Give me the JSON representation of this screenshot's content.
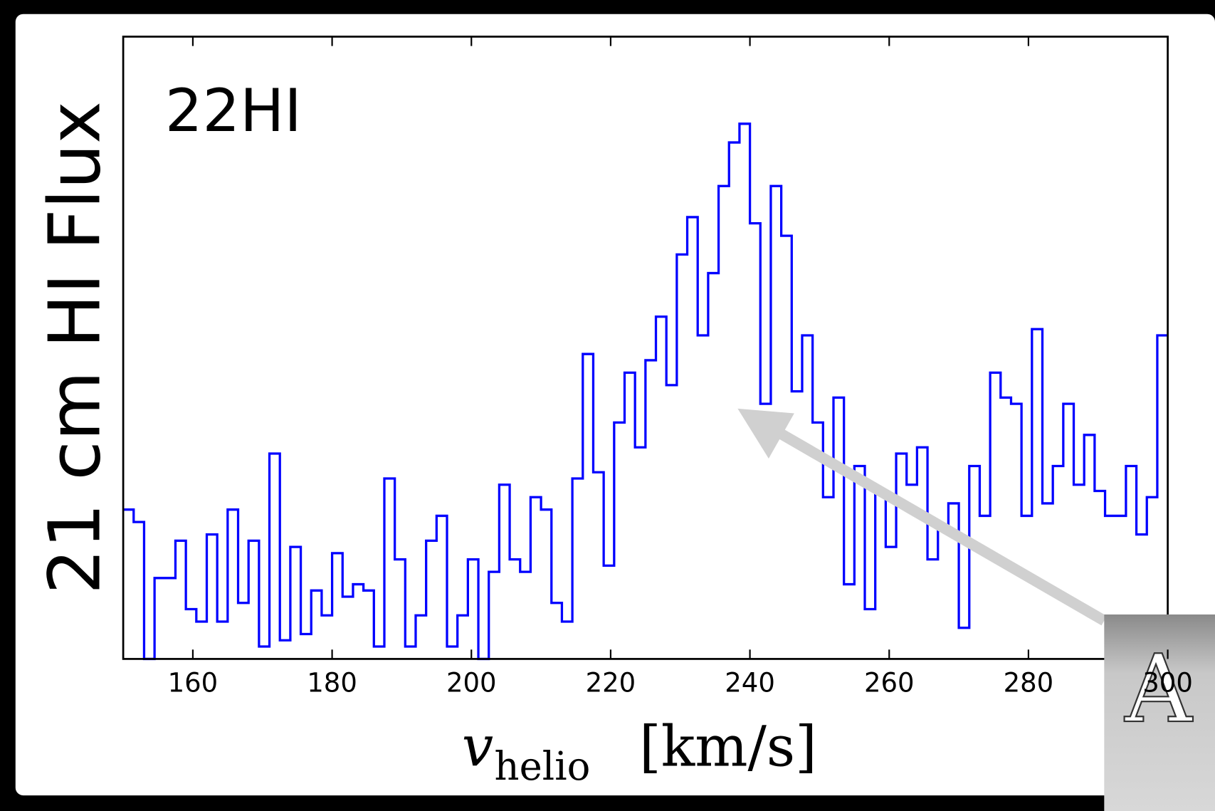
{
  "chart_data": {
    "type": "step",
    "annotation": "22HI",
    "ylabel": "21 cm HI Flux",
    "xlabel": {
      "symbol": "v",
      "subscript": "helio",
      "unit": "[km/s]"
    },
    "overlay_label": "A",
    "color": "#0000ff",
    "xlim": [
      150,
      300
    ],
    "xticks": [
      160,
      180,
      200,
      220,
      240,
      260,
      280,
      300
    ],
    "ylim": [
      0,
      100
    ],
    "x": [
      150,
      151.5,
      153,
      154.5,
      156,
      157.5,
      159,
      160.5,
      162,
      163.5,
      165,
      166.5,
      168,
      169.5,
      171,
      172.5,
      174,
      175.5,
      177,
      178.5,
      180,
      181.5,
      183,
      184.5,
      186,
      187.5,
      189,
      190.5,
      192,
      193.5,
      195,
      196.5,
      198,
      199.5,
      201,
      202.5,
      204,
      205.5,
      207,
      208.5,
      210,
      211.5,
      213,
      214.5,
      216,
      217.5,
      219,
      220.5,
      222,
      223.5,
      225,
      226.5,
      228,
      229.5,
      231,
      232.5,
      234,
      235.5,
      237,
      238.5,
      240,
      241.5,
      243,
      244.5,
      246,
      247.5,
      249,
      250.5,
      252,
      253.5,
      255,
      256.5,
      258,
      259.5,
      261,
      262.5,
      264,
      265.5,
      267,
      268.5,
      270,
      271.5,
      273,
      274.5,
      276,
      277.5,
      279,
      280.5,
      282,
      283.5,
      285,
      286.5,
      288,
      289.5,
      291,
      292.5,
      294,
      295.5,
      297,
      298.5
    ],
    "values": [
      24,
      22,
      0,
      13,
      13,
      19,
      8,
      6,
      20,
      6,
      24,
      9,
      19,
      2,
      33,
      3,
      18,
      4,
      11,
      7,
      17,
      10,
      12,
      11,
      2,
      29,
      16,
      2,
      7,
      19,
      23,
      2,
      7,
      16,
      0,
      14,
      28,
      16,
      14,
      26,
      24,
      9,
      6,
      29,
      49,
      30,
      15,
      38,
      46,
      34,
      48,
      55,
      44,
      65,
      71,
      52,
      62,
      76,
      83,
      86,
      70,
      41,
      76,
      68,
      43,
      52,
      38,
      26,
      42,
      12,
      31,
      8,
      27,
      18,
      33,
      28,
      34,
      16,
      21,
      25,
      5,
      31,
      23,
      46,
      42,
      41,
      23,
      53,
      25,
      31,
      41,
      28,
      36,
      27,
      23,
      23,
      31,
      20,
      26,
      52
    ]
  }
}
